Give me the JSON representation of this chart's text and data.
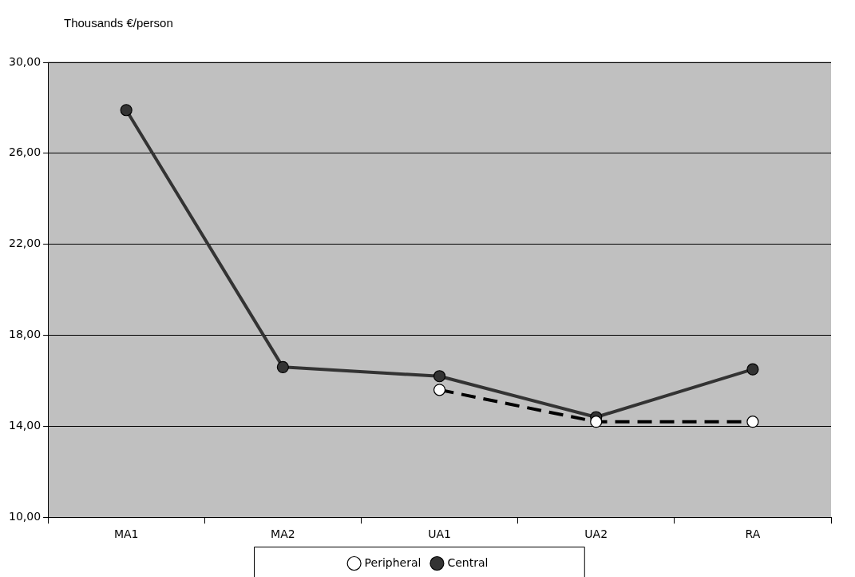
{
  "chart_data": {
    "type": "line",
    "ylabel": "Thousands €/person",
    "categories": [
      "MA1",
      "MA2",
      "UA1",
      "UA2",
      "RA"
    ],
    "series": [
      {
        "name": "Central",
        "color": "#333333",
        "line_style": "solid",
        "values": [
          27.9,
          16.6,
          16.2,
          14.4,
          16.5
        ]
      },
      {
        "name": "Peripheral",
        "color": "#000000",
        "line_style": "dashed",
        "values": [
          null,
          null,
          15.6,
          14.2,
          14.2
        ]
      }
    ],
    "ylim": [
      10,
      30
    ],
    "yticks": [
      {
        "value": 10,
        "label": "10,00"
      },
      {
        "value": 14,
        "label": "14,00"
      },
      {
        "value": 18,
        "label": "18,00"
      },
      {
        "value": 22,
        "label": "22,00"
      },
      {
        "value": 26,
        "label": "26,00"
      },
      {
        "value": 30,
        "label": "30,00"
      }
    ],
    "grid": "y",
    "legend": "bottom",
    "marker": "circle"
  }
}
